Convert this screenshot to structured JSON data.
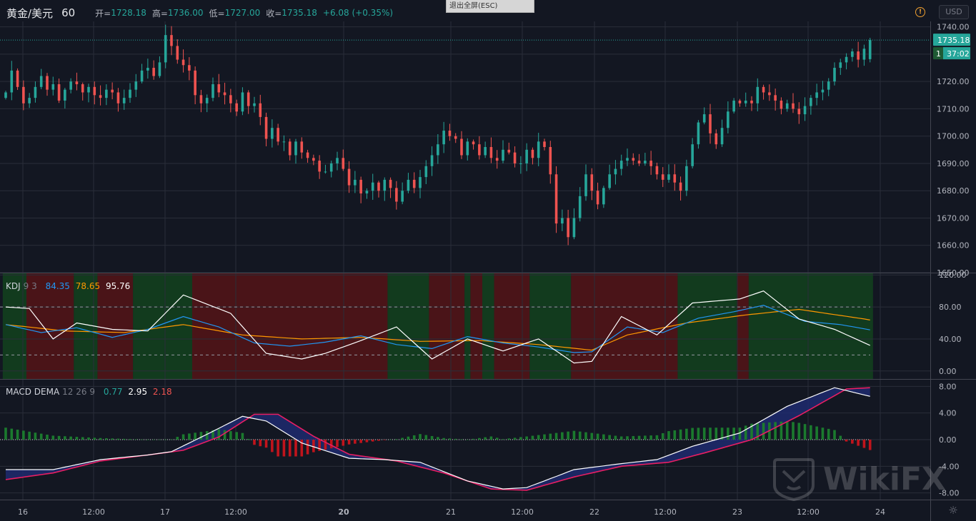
{
  "header": {
    "symbol": "黄金/美元",
    "timeframe": "60",
    "open_label": "开=",
    "open_value": "1728.18",
    "high_label": "高=",
    "high_value": "1736.00",
    "low_label": "低=",
    "low_value": "1727.00",
    "close_label": "收=",
    "close_value": "1735.18",
    "change": "+6.08 (+0.35%)",
    "exit_fullscreen": "退出全屏(ESC)",
    "currency": "USD"
  },
  "price_pane": {
    "last_price": "1735.18",
    "countdown": "37:02",
    "hidden_tag": "1",
    "yticks": [
      "1740.00",
      "1730.00",
      "1720.00",
      "1710.00",
      "1700.00",
      "1690.00",
      "1680.00",
      "1670.00",
      "1660.00",
      "1650.00"
    ]
  },
  "kdj_pane": {
    "name": "KDJ",
    "params": "9 3",
    "k_value": "84.35",
    "d_value": "78.65",
    "j_value": "95.76",
    "yticks": [
      "120.00",
      "80.00",
      "40.00",
      "0.00"
    ]
  },
  "macd_pane": {
    "name": "MACD DEMA",
    "params": "12 26 9",
    "hist_value": "0.77",
    "macd_value": "2.95",
    "signal_value": "2.18",
    "yticks": [
      "8.00",
      "4.00",
      "0.00",
      "-4.00",
      "-8.00"
    ]
  },
  "time_axis": {
    "labels": [
      "16",
      "12:00",
      "17",
      "12:00",
      "20",
      "21",
      "12:00",
      "22",
      "12:00",
      "23",
      "12:00",
      "24"
    ]
  },
  "watermark": "WikiFX",
  "colors": {
    "up": "#26a69a",
    "down": "#ef5350",
    "k": "#2196f3",
    "d": "#ff9800",
    "j": "#ffffff",
    "macd": "#ffffff",
    "signal": "#e91e63",
    "bg_green": "#123b1e",
    "bg_red": "#4a1418"
  },
  "chart_data": [
    {
      "type": "candlestick",
      "title": "黄金/美元 60",
      "y_axis_range": [
        1650,
        1742
      ],
      "x_session_labels": [
        "16",
        "12:00",
        "17",
        "12:00",
        "20",
        "21",
        "12:00",
        "22",
        "12:00",
        "23",
        "12:00",
        "24"
      ],
      "close_series": [
        1716,
        1724,
        1718,
        1712,
        1714,
        1718,
        1722,
        1717,
        1719,
        1713,
        1717,
        1720,
        1719,
        1716,
        1718,
        1715,
        1714,
        1717,
        1716,
        1712,
        1714,
        1717,
        1720,
        1724,
        1725,
        1722,
        1727,
        1737,
        1733,
        1728,
        1726,
        1724,
        1715,
        1712,
        1714,
        1719,
        1716,
        1715,
        1712,
        1709,
        1716,
        1711,
        1712,
        1707,
        1699,
        1703,
        1698,
        1698,
        1693,
        1698,
        1694,
        1692,
        1691,
        1687,
        1687,
        1690,
        1692,
        1688,
        1682,
        1684,
        1679,
        1680,
        1683,
        1680,
        1684,
        1681,
        1676,
        1680,
        1684,
        1681,
        1685,
        1689,
        1693,
        1697,
        1702,
        1700,
        1699,
        1693,
        1698,
        1697,
        1693,
        1696,
        1692,
        1691,
        1695,
        1694,
        1690,
        1690,
        1695,
        1692,
        1698,
        1696,
        1686,
        1668,
        1670,
        1663,
        1670,
        1678,
        1686,
        1680,
        1675,
        1681,
        1686,
        1688,
        1691,
        1692,
        1691,
        1690,
        1691,
        1689,
        1686,
        1684,
        1686,
        1683,
        1680,
        1689,
        1697,
        1705,
        1708,
        1701,
        1697,
        1703,
        1709,
        1713,
        1712,
        1713,
        1712,
        1718,
        1716,
        1715,
        1713,
        1710,
        1712,
        1710,
        1708,
        1711,
        1714,
        1716,
        1717,
        1720,
        1725,
        1727,
        1729,
        1731,
        1728,
        1732,
        1735.18
      ],
      "last_open": 1728.18,
      "last_high": 1736.0,
      "last_low": 1727.0,
      "last_close": 1735.18
    },
    {
      "type": "line",
      "title": "KDJ 9 3",
      "y_axis_range": [
        -10,
        122
      ],
      "series": [
        {
          "name": "K",
          "last": 84.35
        },
        {
          "name": "D",
          "last": 78.65
        },
        {
          "name": "J",
          "last": 95.76
        }
      ],
      "k_keypoints": [
        [
          0,
          58
        ],
        [
          6,
          48
        ],
        [
          12,
          54
        ],
        [
          18,
          42
        ],
        [
          24,
          52
        ],
        [
          30,
          68
        ],
        [
          36,
          55
        ],
        [
          42,
          35
        ],
        [
          48,
          31
        ],
        [
          54,
          36
        ],
        [
          60,
          44
        ],
        [
          66,
          33
        ],
        [
          72,
          28
        ],
        [
          78,
          43
        ],
        [
          84,
          35
        ],
        [
          90,
          30
        ],
        [
          96,
          23
        ],
        [
          99,
          24
        ],
        [
          105,
          55
        ],
        [
          111,
          48
        ],
        [
          117,
          66
        ],
        [
          123,
          74
        ],
        [
          128,
          82
        ],
        [
          135,
          62
        ],
        [
          141,
          58
        ],
        [
          147,
          50
        ],
        [
          153,
          42
        ],
        [
          159,
          34
        ],
        [
          165,
          50
        ],
        [
          171,
          60
        ],
        [
          177,
          31
        ],
        [
          183,
          45
        ],
        [
          189,
          55
        ],
        [
          195,
          64
        ],
        [
          200,
          82
        ],
        [
          206,
          72
        ],
        [
          212,
          40
        ],
        [
          218,
          60
        ],
        [
          224,
          76
        ],
        [
          230,
          85
        ],
        [
          236,
          87
        ],
        [
          242,
          78
        ],
        [
          248,
          58
        ],
        [
          252,
          42
        ],
        [
          258,
          56
        ],
        [
          264,
          72
        ],
        [
          270,
          83
        ],
        [
          276,
          84
        ]
      ],
      "d_keypoints": [
        [
          0,
          58
        ],
        [
          10,
          50
        ],
        [
          20,
          48
        ],
        [
          30,
          58
        ],
        [
          40,
          45
        ],
        [
          50,
          40
        ],
        [
          60,
          42
        ],
        [
          70,
          37
        ],
        [
          80,
          38
        ],
        [
          90,
          33
        ],
        [
          99,
          26
        ],
        [
          105,
          45
        ],
        [
          115,
          60
        ],
        [
          125,
          70
        ],
        [
          134,
          77
        ],
        [
          145,
          65
        ],
        [
          155,
          52
        ],
        [
          165,
          47
        ],
        [
          175,
          48
        ],
        [
          185,
          45
        ],
        [
          195,
          58
        ],
        [
          205,
          68
        ],
        [
          214,
          50
        ],
        [
          225,
          66
        ],
        [
          235,
          79
        ],
        [
          240,
          80
        ],
        [
          250,
          60
        ],
        [
          258,
          52
        ],
        [
          268,
          72
        ],
        [
          276,
          79
        ]
      ],
      "j_keypoints": [
        [
          0,
          80
        ],
        [
          4,
          78
        ],
        [
          8,
          40
        ],
        [
          12,
          60
        ],
        [
          18,
          52
        ],
        [
          24,
          50
        ],
        [
          30,
          95
        ],
        [
          38,
          72
        ],
        [
          44,
          22
        ],
        [
          50,
          15
        ],
        [
          54,
          22
        ],
        [
          60,
          38
        ],
        [
          66,
          55
        ],
        [
          72,
          15
        ],
        [
          78,
          40
        ],
        [
          84,
          25
        ],
        [
          90,
          40
        ],
        [
          96,
          10
        ],
        [
          99,
          12
        ],
        [
          104,
          68
        ],
        [
          110,
          45
        ],
        [
          116,
          85
        ],
        [
          124,
          90
        ],
        [
          128,
          100
        ],
        [
          134,
          65
        ],
        [
          140,
          52
        ],
        [
          146,
          32
        ],
        [
          152,
          20
        ],
        [
          160,
          28
        ],
        [
          166,
          70
        ],
        [
          170,
          65
        ],
        [
          176,
          22
        ],
        [
          182,
          48
        ],
        [
          188,
          66
        ],
        [
          194,
          88
        ],
        [
          200,
          100
        ],
        [
          206,
          82
        ],
        [
          211,
          35
        ],
        [
          217,
          68
        ],
        [
          222,
          88
        ],
        [
          226,
          85
        ],
        [
          232,
          96
        ],
        [
          238,
          94
        ],
        [
          244,
          84
        ],
        [
          248,
          30
        ],
        [
          252,
          5
        ],
        [
          258,
          58
        ],
        [
          264,
          93
        ],
        [
          270,
          105
        ],
        [
          276,
          96
        ]
      ],
      "regions": [
        [
          "green",
          0,
          4
        ],
        [
          "red",
          4,
          12
        ],
        [
          "green",
          12,
          16
        ],
        [
          "red",
          16,
          22
        ],
        [
          "green",
          22,
          32
        ],
        [
          "red",
          32,
          65
        ],
        [
          "green",
          65,
          72
        ],
        [
          "red",
          72,
          78
        ],
        [
          "green",
          78,
          79
        ],
        [
          "red",
          79,
          81
        ],
        [
          "green",
          81,
          83
        ],
        [
          "red",
          83,
          89
        ],
        [
          "green",
          89,
          96
        ],
        [
          "red",
          96,
          114
        ],
        [
          "green",
          114,
          124
        ],
        [
          "red",
          124,
          126
        ],
        [
          "green",
          126,
          172
        ],
        [
          "red",
          172,
          182
        ],
        [
          "green",
          182,
          191
        ],
        [
          "red",
          191,
          206
        ],
        [
          "green",
          206,
          217
        ],
        [
          "red",
          217,
          242
        ],
        [
          "green",
          242,
          276
        ]
      ]
    },
    {
      "type": "line",
      "title": "MACD DEMA 12 26 9",
      "y_axis_range": [
        -9,
        9
      ],
      "series": [
        {
          "name": "Histogram",
          "last": 0.77
        },
        {
          "name": "MACD",
          "last": 2.95
        },
        {
          "name": "Signal",
          "last": 2.18
        }
      ],
      "macd_keypoints": [
        [
          0,
          -4.5
        ],
        [
          8,
          -4.5
        ],
        [
          16,
          -3.0
        ],
        [
          24,
          -2.3
        ],
        [
          28,
          -1.8
        ],
        [
          34,
          0.8
        ],
        [
          40,
          3.5
        ],
        [
          44,
          2.8
        ],
        [
          50,
          -0.5
        ],
        [
          58,
          -2.8
        ],
        [
          64,
          -3.0
        ],
        [
          70,
          -3.4
        ],
        [
          78,
          -6.2
        ],
        [
          84,
          -7.4
        ],
        [
          88,
          -7.2
        ],
        [
          96,
          -4.5
        ],
        [
          104,
          -3.6
        ],
        [
          110,
          -3.0
        ],
        [
          116,
          -1.0
        ],
        [
          124,
          1.0
        ],
        [
          132,
          5.0
        ],
        [
          140,
          7.8
        ],
        [
          146,
          6.5
        ],
        [
          154,
          4.0
        ],
        [
          162,
          1.5
        ],
        [
          170,
          1.6
        ],
        [
          176,
          -2.5
        ],
        [
          180,
          -6.0
        ],
        [
          184,
          -3.8
        ],
        [
          190,
          -2.0
        ],
        [
          196,
          1.5
        ],
        [
          202,
          3.0
        ],
        [
          208,
          2.5
        ],
        [
          212,
          1.5
        ],
        [
          218,
          3.2
        ],
        [
          224,
          6.0
        ],
        [
          232,
          7.8
        ],
        [
          238,
          7.6
        ],
        [
          244,
          5.0
        ],
        [
          250,
          0.6
        ],
        [
          256,
          -0.4
        ],
        [
          262,
          1.5
        ],
        [
          268,
          2.0
        ],
        [
          272,
          2.2
        ],
        [
          276,
          2.95
        ]
      ],
      "signal_keypoints": [
        [
          0,
          -6.0
        ],
        [
          8,
          -5.0
        ],
        [
          16,
          -3.2
        ],
        [
          24,
          -2.3
        ],
        [
          30,
          -1.6
        ],
        [
          36,
          0.4
        ],
        [
          42,
          3.8
        ],
        [
          46,
          3.8
        ],
        [
          52,
          0.5
        ],
        [
          58,
          -2.2
        ],
        [
          66,
          -3.2
        ],
        [
          74,
          -5.0
        ],
        [
          82,
          -7.4
        ],
        [
          88,
          -7.6
        ],
        [
          96,
          -5.6
        ],
        [
          104,
          -4.0
        ],
        [
          112,
          -3.4
        ],
        [
          118,
          -2.0
        ],
        [
          126,
          0.0
        ],
        [
          134,
          3.6
        ],
        [
          142,
          7.6
        ],
        [
          148,
          7.9
        ],
        [
          156,
          5.8
        ],
        [
          164,
          2.4
        ],
        [
          172,
          0.9
        ],
        [
          178,
          -2.6
        ],
        [
          182,
          -4.5
        ],
        [
          190,
          -4.5
        ],
        [
          196,
          -1.0
        ],
        [
          204,
          2.6
        ],
        [
          210,
          2.2
        ],
        [
          214,
          2.0
        ],
        [
          220,
          2.8
        ],
        [
          226,
          5.6
        ],
        [
          234,
          8.0
        ],
        [
          240,
          7.8
        ],
        [
          246,
          4.5
        ],
        [
          252,
          1.0
        ],
        [
          258,
          -0.4
        ],
        [
          264,
          0.5
        ],
        [
          270,
          1.5
        ],
        [
          276,
          2.18
        ]
      ]
    }
  ]
}
